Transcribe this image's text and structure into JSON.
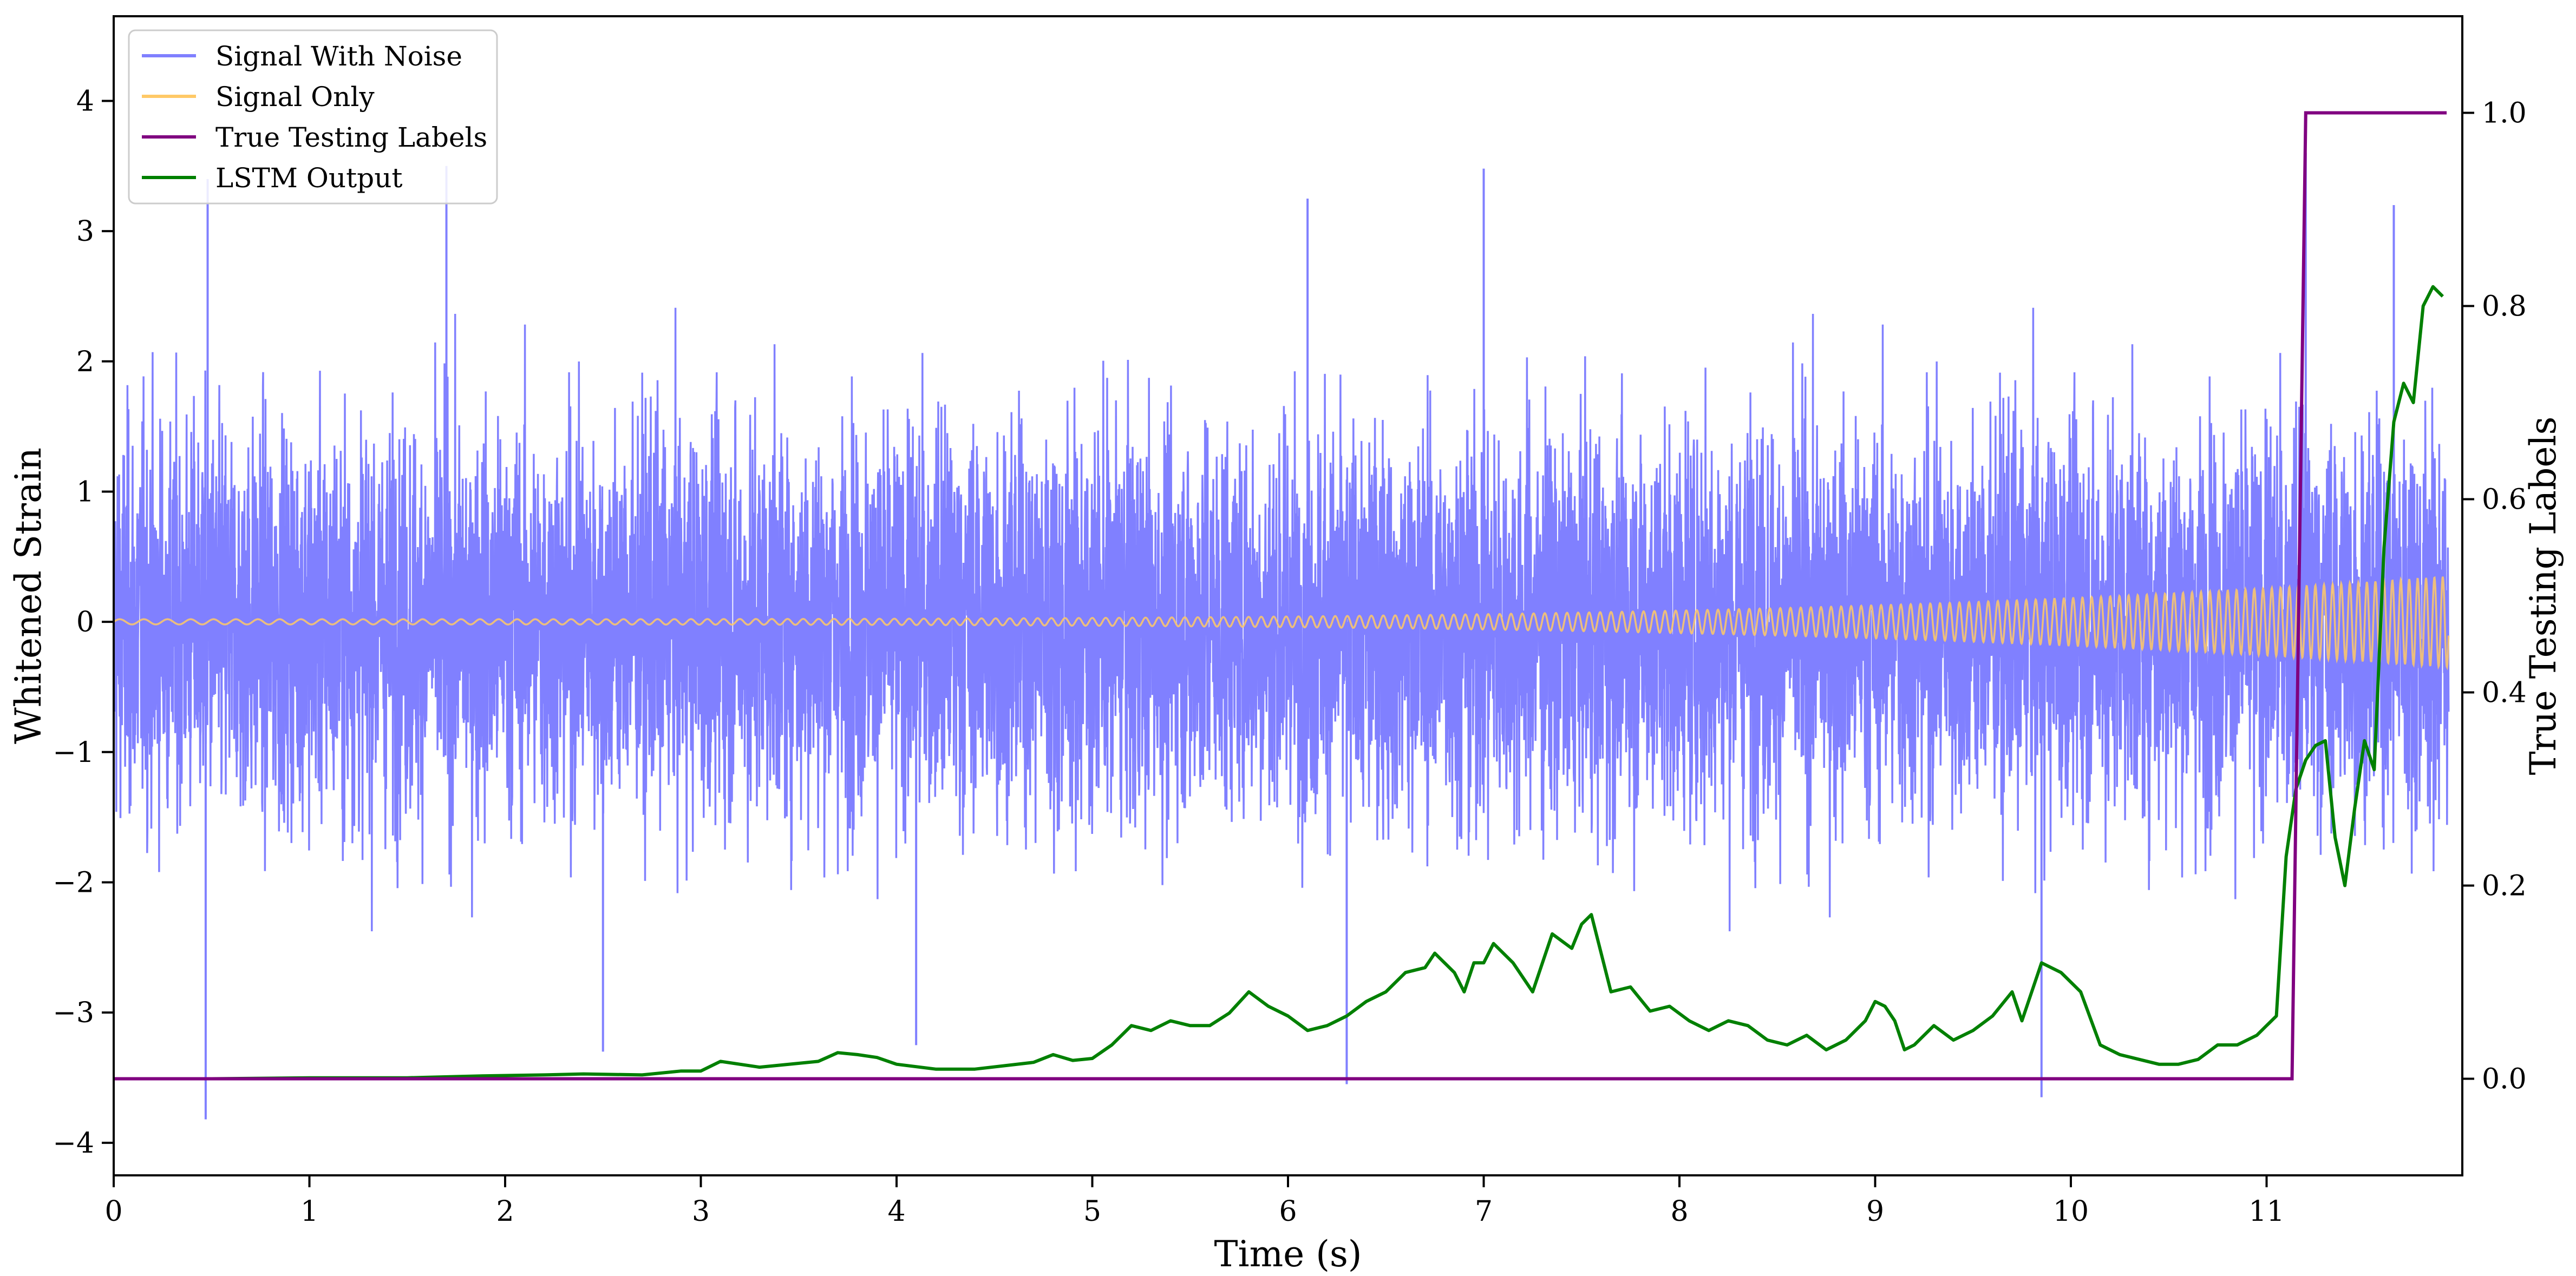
{
  "chart_data": {
    "type": "line",
    "xlabel": "Time (s)",
    "ylabel_left": "Whitened Strain",
    "ylabel_right": "True Testing Labels",
    "xlim": [
      0,
      12.0
    ],
    "ylim_left": [
      -4.25,
      4.65
    ],
    "ylim_right": [
      -0.1,
      1.1
    ],
    "x_ticks": [
      "0",
      "1",
      "2",
      "3",
      "4",
      "5",
      "6",
      "7",
      "8",
      "9",
      "10",
      "11"
    ],
    "y_ticks_left": [
      "−4",
      "−3",
      "−2",
      "−1",
      "0",
      "1",
      "2",
      "3",
      "4"
    ],
    "y_ticks_right": [
      "0.0",
      "0.2",
      "0.4",
      "0.6",
      "0.8",
      "1.0"
    ],
    "grid": false,
    "legend_position": "top-left",
    "legend": [
      "Signal With Noise",
      "Signal Only",
      "True Testing Labels",
      "LSTM Output"
    ],
    "colors": {
      "signal_with_noise": "#8080ff",
      "signal_only": "#ffc966",
      "true_labels": "#800080",
      "lstm_output": "#008000"
    },
    "series": [
      {
        "name": "Signal With Noise",
        "axis": "left",
        "description_values": "dense Gaussian noise, sigma about 0.75; visible outliers",
        "sigma": 0.75,
        "spikes": [
          {
            "x": 0.47,
            "y": -3.82
          },
          {
            "x": 0.48,
            "y": 3.4
          },
          {
            "x": 1.7,
            "y": 3.5
          },
          {
            "x": 2.5,
            "y": -3.3
          },
          {
            "x": 4.1,
            "y": -3.25
          },
          {
            "x": 6.3,
            "y": -3.55
          },
          {
            "x": 6.1,
            "y": 3.25
          },
          {
            "x": 7.0,
            "y": 3.48
          },
          {
            "x": 9.85,
            "y": -3.65
          },
          {
            "x": 11.2,
            "y": 3.6
          },
          {
            "x": 11.65,
            "y": 3.2
          }
        ]
      },
      {
        "name": "Signal Only",
        "axis": "left",
        "description_values": "chirp sinusoid, amplitude growing from 0.02 to 0.35",
        "amp_start": 0.02,
        "amp_end": 0.35
      },
      {
        "name": "True Testing Labels",
        "axis": "right",
        "x": [
          0,
          11.13,
          11.2,
          11.92
        ],
        "y": [
          0,
          0,
          1.0,
          1.0
        ]
      },
      {
        "name": "LSTM Output",
        "axis": "right",
        "x": [
          0,
          0.5,
          1.0,
          1.5,
          1.9,
          2.2,
          2.4,
          2.7,
          2.9,
          3.0,
          3.1,
          3.3,
          3.6,
          3.7,
          3.8,
          3.9,
          4.0,
          4.2,
          4.4,
          4.7,
          4.8,
          4.9,
          5.0,
          5.1,
          5.2,
          5.3,
          5.4,
          5.5,
          5.6,
          5.7,
          5.8,
          5.9,
          6.0,
          6.1,
          6.2,
          6.3,
          6.4,
          6.5,
          6.6,
          6.7,
          6.75,
          6.85,
          6.9,
          6.95,
          7.0,
          7.05,
          7.15,
          7.25,
          7.35,
          7.45,
          7.5,
          7.55,
          7.65,
          7.75,
          7.85,
          7.95,
          8.05,
          8.15,
          8.25,
          8.35,
          8.45,
          8.55,
          8.65,
          8.75,
          8.85,
          8.95,
          9.0,
          9.05,
          9.1,
          9.15,
          9.2,
          9.3,
          9.4,
          9.5,
          9.6,
          9.7,
          9.75,
          9.85,
          9.95,
          10.05,
          10.15,
          10.25,
          10.35,
          10.45,
          10.55,
          10.65,
          10.75,
          10.85,
          10.95,
          11.0,
          11.05,
          11.1,
          11.15,
          11.2,
          11.25,
          11.3,
          11.35,
          11.4,
          11.45,
          11.5,
          11.55,
          11.6,
          11.65,
          11.7,
          11.75,
          11.8,
          11.85,
          11.9
        ],
        "y": [
          0.0,
          0.0,
          0.001,
          0.001,
          0.003,
          0.004,
          0.005,
          0.004,
          0.008,
          0.008,
          0.018,
          0.012,
          0.018,
          0.027,
          0.025,
          0.022,
          0.015,
          0.01,
          0.01,
          0.017,
          0.025,
          0.019,
          0.021,
          0.035,
          0.055,
          0.05,
          0.06,
          0.055,
          0.055,
          0.068,
          0.09,
          0.075,
          0.065,
          0.05,
          0.055,
          0.065,
          0.08,
          0.09,
          0.11,
          0.115,
          0.13,
          0.11,
          0.09,
          0.12,
          0.12,
          0.14,
          0.12,
          0.09,
          0.15,
          0.135,
          0.16,
          0.17,
          0.09,
          0.095,
          0.07,
          0.075,
          0.06,
          0.05,
          0.06,
          0.055,
          0.04,
          0.035,
          0.045,
          0.03,
          0.04,
          0.06,
          0.08,
          0.075,
          0.06,
          0.03,
          0.035,
          0.055,
          0.04,
          0.05,
          0.065,
          0.09,
          0.06,
          0.12,
          0.11,
          0.09,
          0.035,
          0.025,
          0.02,
          0.015,
          0.015,
          0.02,
          0.035,
          0.035,
          0.045,
          0.055,
          0.065,
          0.23,
          0.3,
          0.33,
          0.345,
          0.35,
          0.25,
          0.2,
          0.28,
          0.35,
          0.32,
          0.55,
          0.68,
          0.72,
          0.7,
          0.8,
          0.82,
          0.81
        ]
      }
    ]
  }
}
